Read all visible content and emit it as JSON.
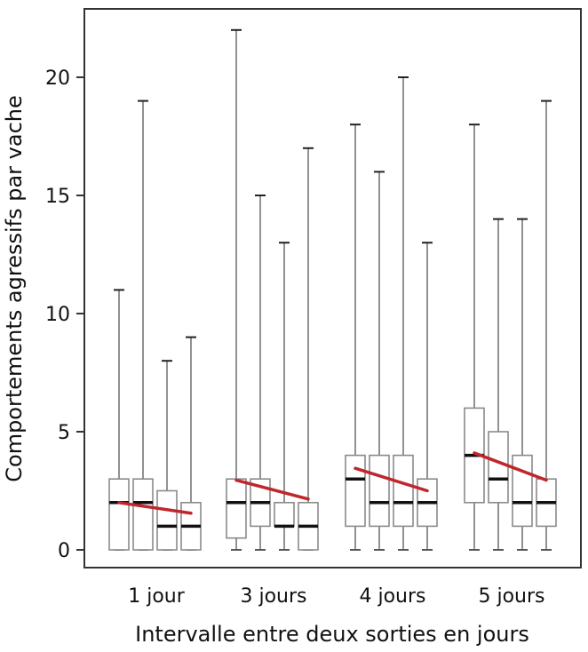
{
  "chart_data": {
    "type": "box",
    "xlabel": "Intervalle entre deux sorties en jours",
    "ylabel": "Comportements agressifs par vache",
    "ylim": [
      -0.8,
      22.5
    ],
    "yticks": [
      0,
      5,
      10,
      15,
      20
    ],
    "grid": false,
    "categories": [
      "1 jour",
      "3 jours",
      "4 jours",
      "5 jours"
    ],
    "groups": [
      {
        "label": "1 jour",
        "boxes": [
          {
            "min": 0,
            "q1": 0,
            "median": 2,
            "q3": 3,
            "max": 11
          },
          {
            "min": 0,
            "q1": 0,
            "median": 2,
            "q3": 3,
            "max": 19
          },
          {
            "min": 0,
            "q1": 0,
            "median": 1,
            "q3": 2.5,
            "max": 8
          },
          {
            "min": 0,
            "q1": 0,
            "median": 1,
            "q3": 2,
            "max": 9
          }
        ],
        "trend": [
          2.0,
          1.55
        ]
      },
      {
        "label": "3 jours",
        "boxes": [
          {
            "min": 0,
            "q1": 0.5,
            "median": 2,
            "q3": 3,
            "max": 22
          },
          {
            "min": 0,
            "q1": 1,
            "median": 2,
            "q3": 3,
            "max": 15
          },
          {
            "min": 0,
            "q1": 1,
            "median": 1,
            "q3": 2,
            "max": 13
          },
          {
            "min": 0,
            "q1": 0,
            "median": 1,
            "q3": 2,
            "max": 17
          }
        ],
        "trend": [
          2.95,
          2.15
        ]
      },
      {
        "label": "4 jours",
        "boxes": [
          {
            "min": 0,
            "q1": 1,
            "median": 3,
            "q3": 4,
            "max": 18
          },
          {
            "min": 0,
            "q1": 1,
            "median": 2,
            "q3": 4,
            "max": 16
          },
          {
            "min": 0,
            "q1": 1,
            "median": 2,
            "q3": 4,
            "max": 20
          },
          {
            "min": 0,
            "q1": 1,
            "median": 2,
            "q3": 3,
            "max": 13
          }
        ],
        "trend": [
          3.45,
          2.5
        ]
      },
      {
        "label": "5 jours",
        "boxes": [
          {
            "min": 0,
            "q1": 2,
            "median": 4,
            "q3": 6,
            "max": 18
          },
          {
            "min": 0,
            "q1": 2,
            "median": 3,
            "q3": 5,
            "max": 14
          },
          {
            "min": 0,
            "q1": 1,
            "median": 2,
            "q3": 4,
            "max": 14
          },
          {
            "min": 0,
            "q1": 1,
            "median": 2,
            "q3": 3,
            "max": 19
          }
        ],
        "trend": [
          4.1,
          2.95
        ]
      }
    ],
    "colors": {
      "box": "#8a8a8a",
      "whisker": "#777777",
      "median": "#111111",
      "trend": "#c0262d",
      "frame": "#333333"
    }
  }
}
